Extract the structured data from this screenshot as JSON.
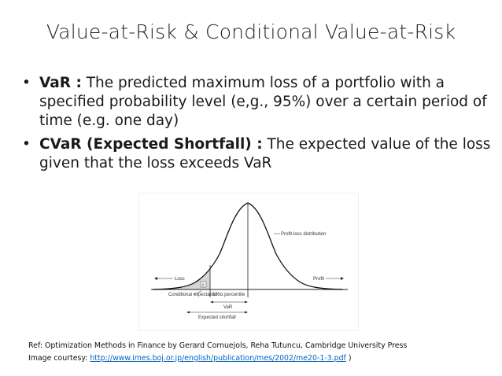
{
  "slide": {
    "title": "Value-at-Risk & Conditional Value-at-Risk",
    "bullets": [
      {
        "term": "VaR :",
        "text": " The predicted maximum loss of a portfolio with a specified probability level (e,g., 95%) over a certain period of time (e.g. one day)"
      },
      {
        "term": "CVaR (Expected Shortfall) :",
        "text": " The expected value of the loss given that the loss exceeds VaR"
      }
    ],
    "figure": {
      "distribution_label": "Profit-loss distribution",
      "loss_label": "Loss",
      "profit_label": "Profit",
      "alpha_label": "α",
      "conditional_expectation_label": "Conditional expectation",
      "percentile_label": "100α percentile",
      "var_label": "VaR",
      "expected_shortfall_label": "Expected shortfall"
    },
    "reference": {
      "ref_text": "Ref: Optimization Methods in Finance by Gerard Cornuejols, Reha Tutuncu, Cambridge University Press",
      "courtesy_prefix": "Image courtesy: ",
      "courtesy_link": "http://www.imes.boj.or.jp/english/publication/mes/2002/me20-1-3.pdf",
      "courtesy_suffix": " )"
    }
  }
}
